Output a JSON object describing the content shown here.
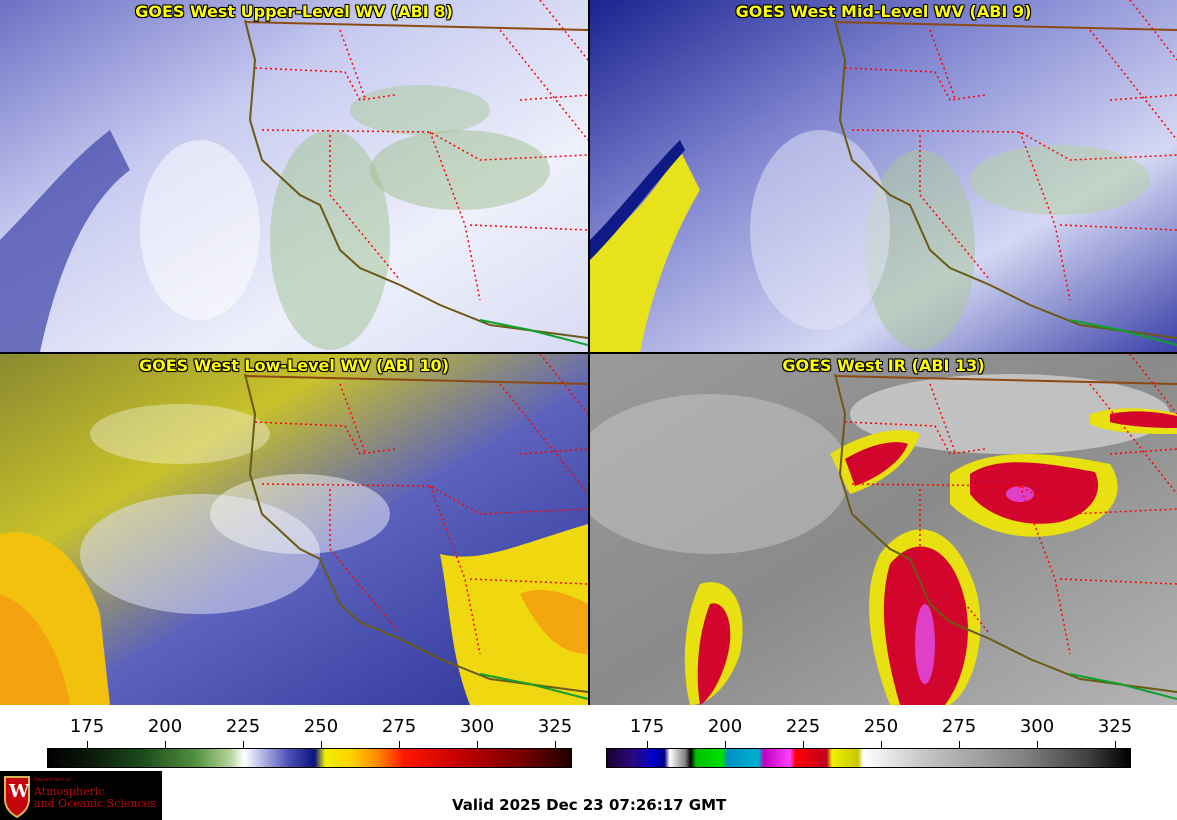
{
  "panels": [
    {
      "title": "GOES West Upper-Level WV (ABI 8)",
      "base": "#c9cbef",
      "dark": "#1c2390",
      "accent": "#7fae72"
    },
    {
      "title": "GOES West Mid-Level WV (ABI 9)",
      "base": "#8f93d6",
      "dark": "#0d1a86",
      "accent": "#9fc08f"
    },
    {
      "title": "GOES West Low-Level WV (ABI 10)",
      "base": "#5b60b8",
      "dark": "#101a7c",
      "accent": "#d9d22a"
    },
    {
      "title": "GOES West IR (ABI 13)",
      "base": "#8c8c8c",
      "dark": "#5e5e5e",
      "accent": "#cc0a2c"
    }
  ],
  "colorbar_wv": {
    "ticks": [
      "175",
      "200",
      "225",
      "250",
      "275",
      "300",
      "325"
    ]
  },
  "colorbar_ir": {
    "ticks": [
      "175",
      "200",
      "225",
      "250",
      "275",
      "300",
      "325"
    ]
  },
  "logo": {
    "dept": "Department of",
    "line1": "Atmospheric",
    "line2": "and Oceanic Sciences",
    "crest": "W"
  },
  "valid_time": "Valid 2025 Dec 23 07:26:17 GMT",
  "colors": {
    "state_borders": "#ff0000",
    "coastline": "#6b5a14",
    "intl_border": "#8b4a14",
    "mexico_border": "#10a030"
  }
}
